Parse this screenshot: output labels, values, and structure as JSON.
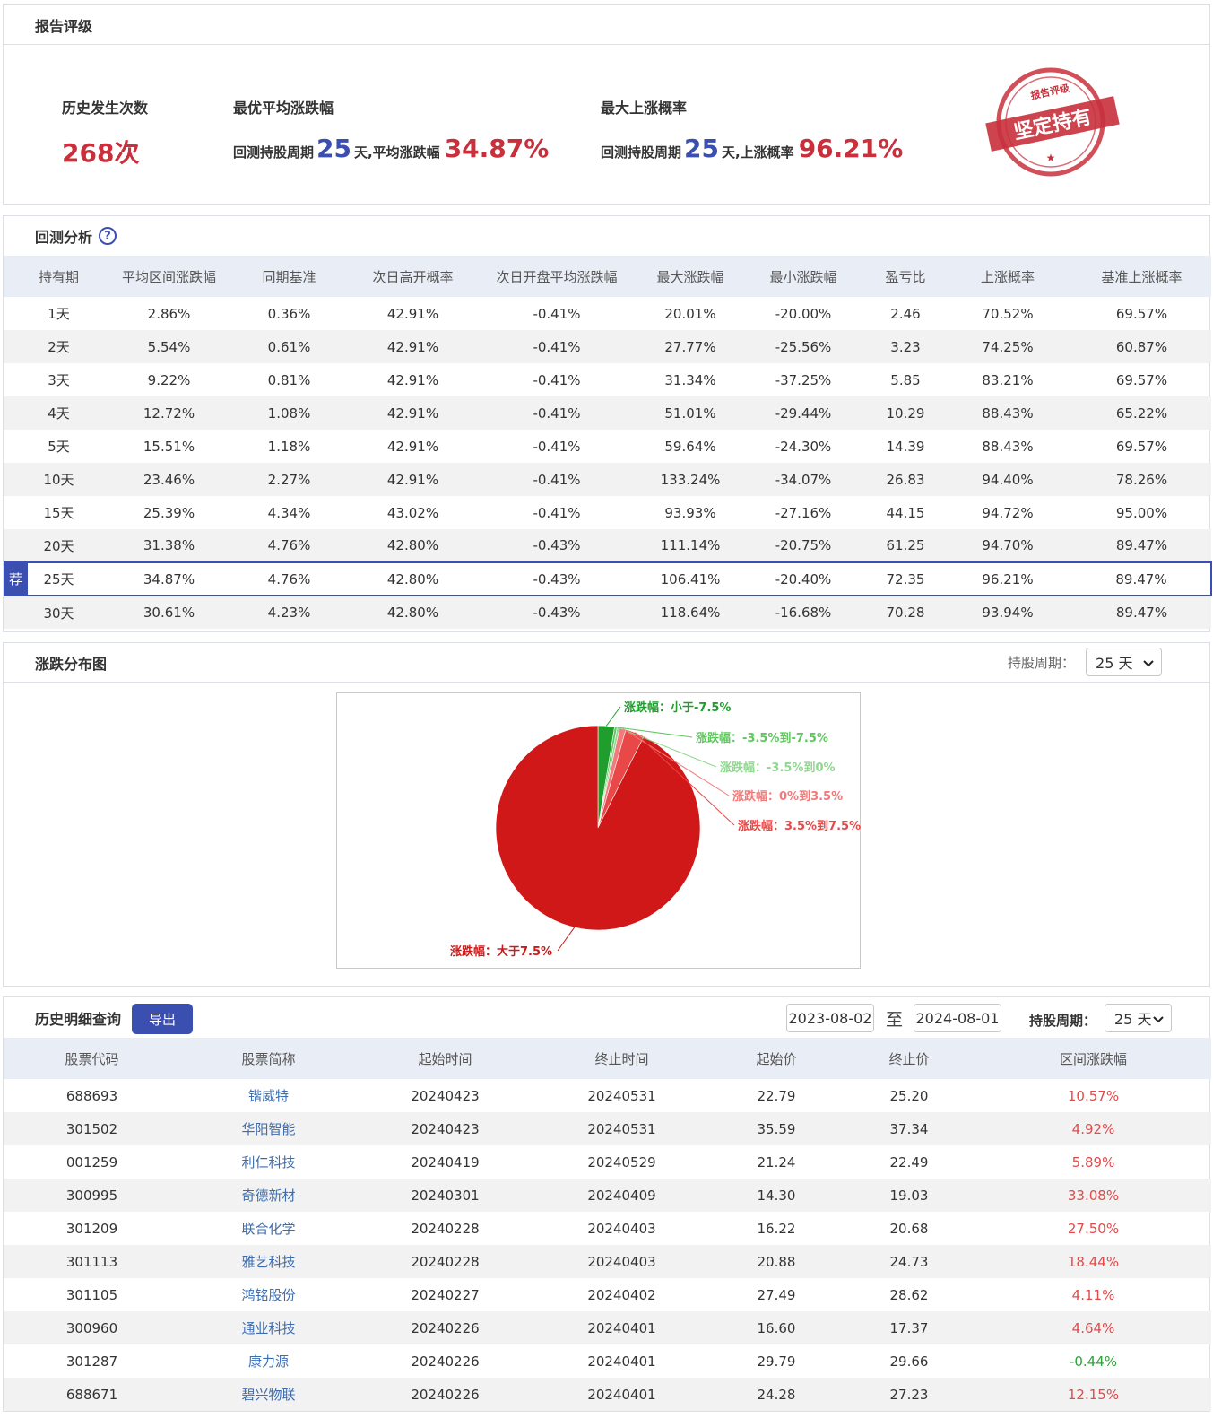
{
  "rating": {
    "title": "报告评级",
    "history_count_label": "历史发生次数",
    "history_count_value": "268次",
    "best_avg_label": "最优平均涨跌幅",
    "best_avg": {
      "prefix": "回测持股周期",
      "days": "25",
      "mid": "天,平均涨跌幅",
      "value": "34.87%"
    },
    "max_up_label": "最大上涨概率",
    "max_up": {
      "prefix": "回测持股周期",
      "days": "25",
      "mid": "天,上涨概率",
      "value": "96.21%"
    },
    "stamp": {
      "top_text": "报告评级",
      "main_text": "坚定持有"
    }
  },
  "backtest": {
    "title": "回测分析",
    "help_icon": "?",
    "headers": [
      "持有期",
      "平均区间涨跌幅",
      "同期基准",
      "次日高开概率",
      "次日开盘平均涨跌幅",
      "最大涨跌幅",
      "最小涨跌幅",
      "盈亏比",
      "上涨概率",
      "基准上涨概率"
    ],
    "recommend_badge": "荐",
    "rows": [
      [
        "1天",
        "2.86%",
        "0.36%",
        "42.91%",
        "-0.41%",
        "20.01%",
        "-20.00%",
        "2.46",
        "70.52%",
        "69.57%"
      ],
      [
        "2天",
        "5.54%",
        "0.61%",
        "42.91%",
        "-0.41%",
        "27.77%",
        "-25.56%",
        "3.23",
        "74.25%",
        "60.87%"
      ],
      [
        "3天",
        "9.22%",
        "0.81%",
        "42.91%",
        "-0.41%",
        "31.34%",
        "-37.25%",
        "5.85",
        "83.21%",
        "69.57%"
      ],
      [
        "4天",
        "12.72%",
        "1.08%",
        "42.91%",
        "-0.41%",
        "51.01%",
        "-29.44%",
        "10.29",
        "88.43%",
        "65.22%"
      ],
      [
        "5天",
        "15.51%",
        "1.18%",
        "42.91%",
        "-0.41%",
        "59.64%",
        "-24.30%",
        "14.39",
        "88.43%",
        "69.57%"
      ],
      [
        "10天",
        "23.46%",
        "2.27%",
        "42.91%",
        "-0.41%",
        "133.24%",
        "-34.07%",
        "26.83",
        "94.40%",
        "78.26%"
      ],
      [
        "15天",
        "25.39%",
        "4.34%",
        "43.02%",
        "-0.41%",
        "93.93%",
        "-27.16%",
        "44.15",
        "94.72%",
        "95.00%"
      ],
      [
        "20天",
        "31.38%",
        "4.76%",
        "42.80%",
        "-0.43%",
        "111.14%",
        "-20.75%",
        "61.25",
        "94.70%",
        "89.47%"
      ],
      [
        "25天",
        "34.87%",
        "4.76%",
        "42.80%",
        "-0.43%",
        "106.41%",
        "-20.40%",
        "72.35",
        "96.21%",
        "89.47%"
      ],
      [
        "30天",
        "30.61%",
        "4.23%",
        "42.80%",
        "-0.43%",
        "118.64%",
        "-16.68%",
        "70.28",
        "93.94%",
        "89.47%"
      ]
    ]
  },
  "distribution": {
    "title": "涨跌分布图",
    "period_label": "持股周期：",
    "period_value": "25 天",
    "chart_data": {
      "type": "pie",
      "categories": [
        "涨跌幅：小于-7.5%",
        "涨跌幅：-3.5%到-7.5%",
        "涨跌幅：-3.5%到0%",
        "涨跌幅：0%到3.5%",
        "涨跌幅：3.5%到7.5%",
        "涨跌幅：大于7.5%"
      ],
      "values": [
        2.6,
        0.4,
        0.4,
        1.0,
        3.0,
        92.6
      ],
      "colors": [
        "#1f9e2d",
        "#5ec85e",
        "#8fd88f",
        "#f27a7a",
        "#e84848",
        "#d01818"
      ]
    }
  },
  "history": {
    "title": "历史明细查询",
    "export_label": "导出",
    "start_date": "2023-08-02",
    "to_label": "至",
    "end_date": "2024-08-01",
    "period_label": "持股周期：",
    "period_value": "25 天",
    "headers": [
      "股票代码",
      "股票简称",
      "起始时间",
      "终止时间",
      "起始价",
      "终止价",
      "区间涨跌幅"
    ],
    "rows": [
      [
        "688693",
        "锴威特",
        "20240423",
        "20240531",
        "22.79",
        "25.20",
        "10.57%"
      ],
      [
        "301502",
        "华阳智能",
        "20240423",
        "20240531",
        "35.59",
        "37.34",
        "4.92%"
      ],
      [
        "001259",
        "利仁科技",
        "20240419",
        "20240529",
        "21.24",
        "22.49",
        "5.89%"
      ],
      [
        "300995",
        "奇德新材",
        "20240301",
        "20240409",
        "14.30",
        "19.03",
        "33.08%"
      ],
      [
        "301209",
        "联合化学",
        "20240228",
        "20240403",
        "16.22",
        "20.68",
        "27.50%"
      ],
      [
        "301113",
        "雅艺科技",
        "20240228",
        "20240403",
        "20.88",
        "24.73",
        "18.44%"
      ],
      [
        "301105",
        "鸿铭股份",
        "20240227",
        "20240402",
        "27.49",
        "28.62",
        "4.11%"
      ],
      [
        "300960",
        "通业科技",
        "20240226",
        "20240401",
        "16.60",
        "17.37",
        "4.64%"
      ],
      [
        "301287",
        "康力源",
        "20240226",
        "20240401",
        "29.79",
        "29.66",
        "-0.44%"
      ],
      [
        "688671",
        "碧兴物联",
        "20240226",
        "20240401",
        "24.28",
        "27.23",
        "12.15%"
      ]
    ]
  }
}
